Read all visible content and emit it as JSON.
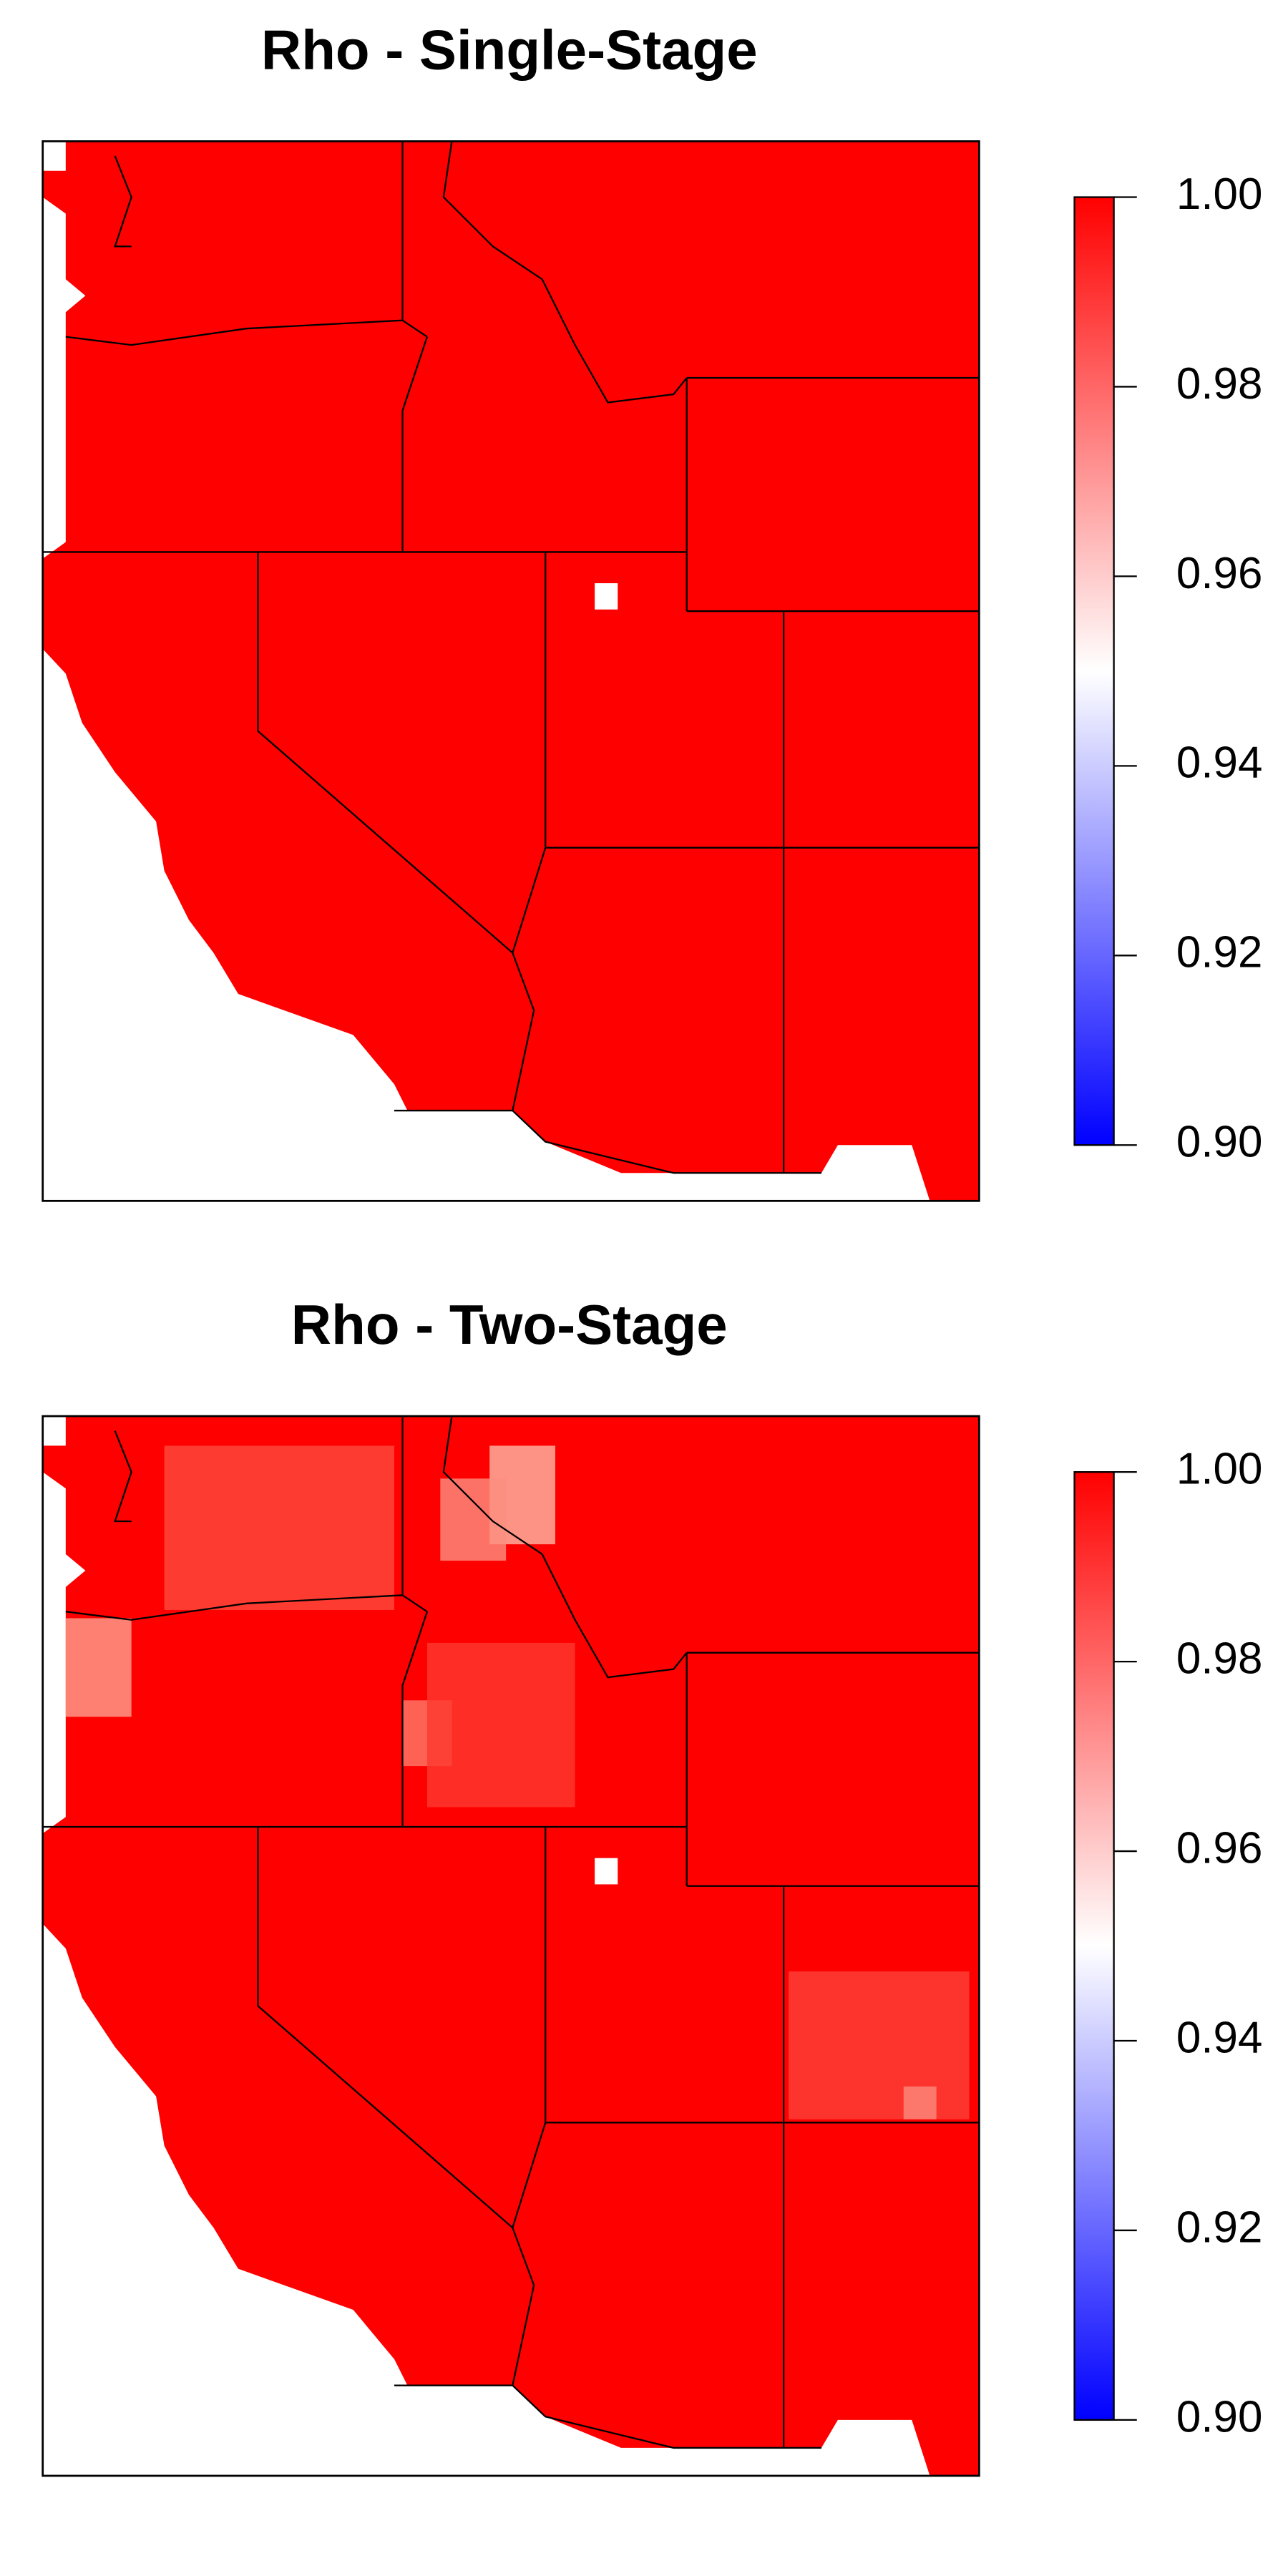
{
  "chart_data": [
    {
      "type": "heatmap",
      "title": "Rho - Single-Stage",
      "colormap": [
        "#0000ff",
        "#ffffff",
        "#ff0000"
      ],
      "clim": [
        0.9,
        1.0
      ],
      "cticks": [
        {
          "value": 0.9,
          "label": "0.90"
        },
        {
          "value": 0.92,
          "label": "0.92"
        },
        {
          "value": 0.94,
          "label": "0.94"
        },
        {
          "value": 0.96,
          "label": "0.96"
        },
        {
          "value": 0.98,
          "label": "0.98"
        },
        {
          "value": 1.0,
          "label": "1.00"
        }
      ]
    },
    {
      "type": "heatmap",
      "title": "Rho - Two-Stage",
      "colormap": [
        "#0000ff",
        "#ffffff",
        "#ff0000"
      ],
      "clim": [
        0.9,
        1.0
      ],
      "cticks": [
        {
          "value": 0.9,
          "label": "0.90"
        },
        {
          "value": 0.92,
          "label": "0.92"
        },
        {
          "value": 0.94,
          "label": "0.94"
        },
        {
          "value": 0.96,
          "label": "0.96"
        },
        {
          "value": 0.98,
          "label": "0.98"
        },
        {
          "value": 1.0,
          "label": "1.00"
        }
      ]
    }
  ]
}
